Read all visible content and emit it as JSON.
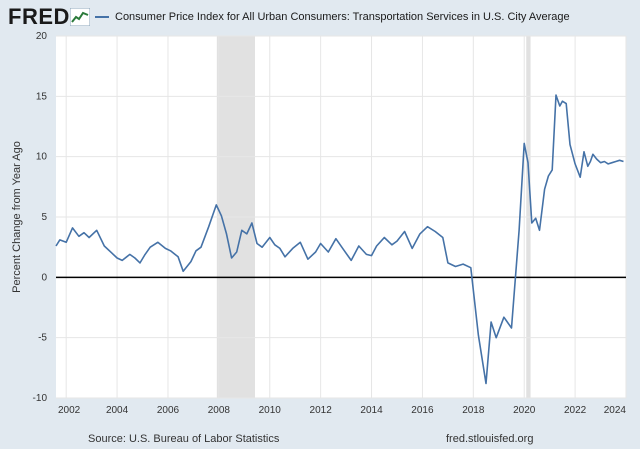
{
  "header": {
    "logo_text": "FRED",
    "logo_icon": "line-chart-icon",
    "legend_label": "Consumer Price Index for All Urban Consumers: Transportation Services in U.S. City Average"
  },
  "footer": {
    "source": "Source: U.S. Bureau of Labor Statistics",
    "url": "fred.stlouisfed.org"
  },
  "colors": {
    "series": "#4572a7",
    "recession": "#e1e1e1",
    "frame": "#e1e9f0",
    "grid": "#e6e6e6",
    "zero_line": "#000000"
  },
  "chart_data": {
    "type": "line",
    "title": "",
    "xlabel": "",
    "ylabel": "Percent Change from Year Ago",
    "xlim": [
      2001.6,
      2024.0
    ],
    "ylim": [
      -10,
      20
    ],
    "x_ticks": [
      "2002",
      "2004",
      "2006",
      "2008",
      "2010",
      "2012",
      "2014",
      "2016",
      "2018",
      "2020",
      "2022",
      "2024"
    ],
    "y_ticks": [
      "-10",
      "-5",
      "0",
      "5",
      "10",
      "15",
      "20"
    ],
    "grid": true,
    "recessions": [
      [
        2007.92,
        2009.42
      ],
      [
        2020.08,
        2020.25
      ]
    ],
    "series": [
      {
        "name": "Consumer Price Index for All Urban Consumers: Transportation Services in U.S. City Average",
        "x": [
          2001.6,
          2001.75,
          2002.0,
          2002.25,
          2002.5,
          2002.7,
          2002.9,
          2003.2,
          2003.5,
          2003.8,
          2004.0,
          2004.2,
          2004.5,
          2004.7,
          2004.9,
          2005.1,
          2005.3,
          2005.6,
          2005.9,
          2006.1,
          2006.4,
          2006.6,
          2006.9,
          2007.1,
          2007.3,
          2007.6,
          2007.9,
          2008.1,
          2008.3,
          2008.5,
          2008.7,
          2008.9,
          2009.1,
          2009.3,
          2009.5,
          2009.7,
          2010.0,
          2010.2,
          2010.4,
          2010.6,
          2010.9,
          2011.2,
          2011.5,
          2011.8,
          2012.0,
          2012.3,
          2012.6,
          2012.9,
          2013.2,
          2013.5,
          2013.8,
          2014.0,
          2014.2,
          2014.5,
          2014.8,
          2015.0,
          2015.3,
          2015.6,
          2015.9,
          2016.2,
          2016.5,
          2016.8,
          2017.0,
          2017.3,
          2017.6,
          2017.9,
          2018.2,
          2018.5,
          2018.7,
          2018.9,
          2019.2,
          2019.5,
          2019.8,
          2020.0,
          2020.15,
          2020.3,
          2020.45,
          2020.6,
          2020.8,
          2020.95,
          2021.1,
          2021.25,
          2021.4,
          2021.5,
          2021.65,
          2021.8,
          2022.0,
          2022.2,
          2022.35,
          2022.5,
          2022.6,
          2022.7,
          2022.85,
          2023.0,
          2023.15,
          2023.3,
          2023.45,
          2023.6,
          2023.75,
          2023.9
        ],
        "y": [
          2.6,
          3.1,
          2.9,
          4.1,
          3.4,
          3.7,
          3.3,
          3.9,
          2.6,
          2.0,
          1.6,
          1.4,
          1.9,
          1.6,
          1.2,
          1.9,
          2.5,
          2.9,
          2.4,
          2.2,
          1.7,
          0.5,
          1.3,
          2.2,
          2.5,
          4.2,
          6.0,
          5.1,
          3.6,
          1.6,
          2.1,
          3.9,
          3.6,
          4.5,
          2.8,
          2.5,
          3.3,
          2.7,
          2.4,
          1.7,
          2.4,
          2.9,
          1.5,
          2.1,
          2.8,
          2.1,
          3.2,
          2.3,
          1.4,
          2.6,
          1.9,
          1.8,
          2.6,
          3.3,
          2.7,
          3.0,
          3.8,
          2.4,
          3.6,
          4.2,
          3.8,
          3.3,
          1.2,
          0.9,
          1.1,
          0.8,
          -4.8,
          -8.8,
          -3.7,
          -5.0,
          -3.3,
          -4.2,
          3.9,
          11.1,
          9.5,
          4.5,
          4.9,
          3.9,
          7.3,
          8.4,
          8.9,
          15.1,
          14.2,
          14.6,
          14.4,
          11.0,
          9.4,
          8.3,
          10.4,
          9.2,
          9.6,
          10.2,
          9.8,
          9.5,
          9.6,
          9.4,
          9.5,
          9.6,
          9.7,
          9.6
        ]
      }
    ]
  }
}
